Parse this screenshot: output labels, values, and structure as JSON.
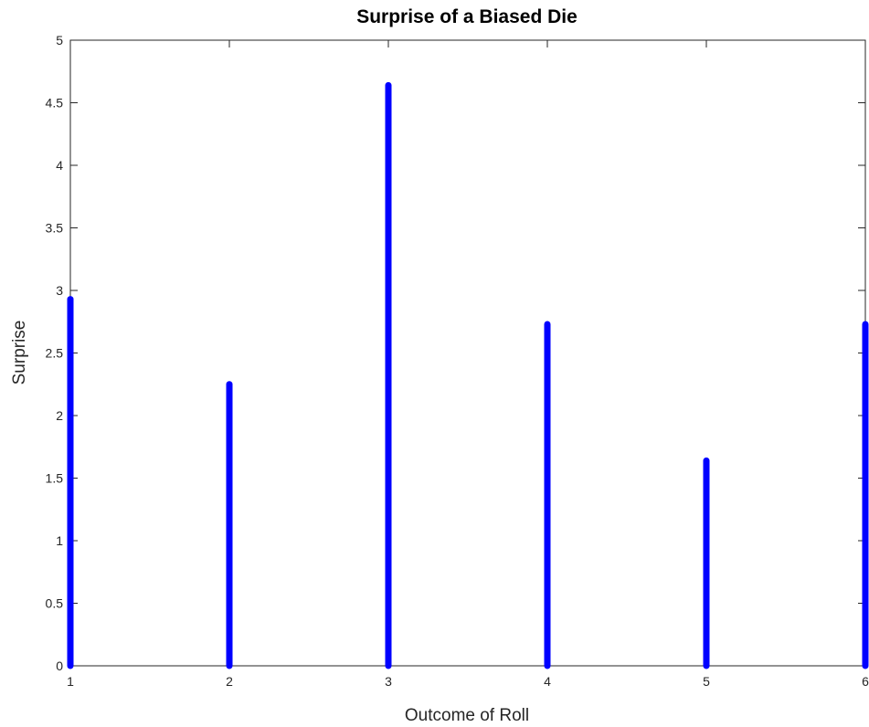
{
  "chart_data": {
    "type": "bar",
    "style": "stem",
    "title": "Surprise of a Biased Die",
    "xlabel": "Outcome of Roll",
    "ylabel": "Surprise",
    "x": [
      1,
      2,
      3,
      4,
      5,
      6
    ],
    "values": [
      2.93,
      2.25,
      4.64,
      2.73,
      1.64,
      2.73
    ],
    "xlim": [
      1,
      6
    ],
    "ylim": [
      0,
      5
    ],
    "xticks": [
      "1",
      "2",
      "3",
      "4",
      "5",
      "6"
    ],
    "yticks": [
      "0",
      "0.5",
      "1",
      "1.5",
      "2",
      "2.5",
      "3",
      "3.5",
      "4",
      "4.5",
      "5"
    ],
    "grid": false,
    "color": "#0000ff"
  }
}
